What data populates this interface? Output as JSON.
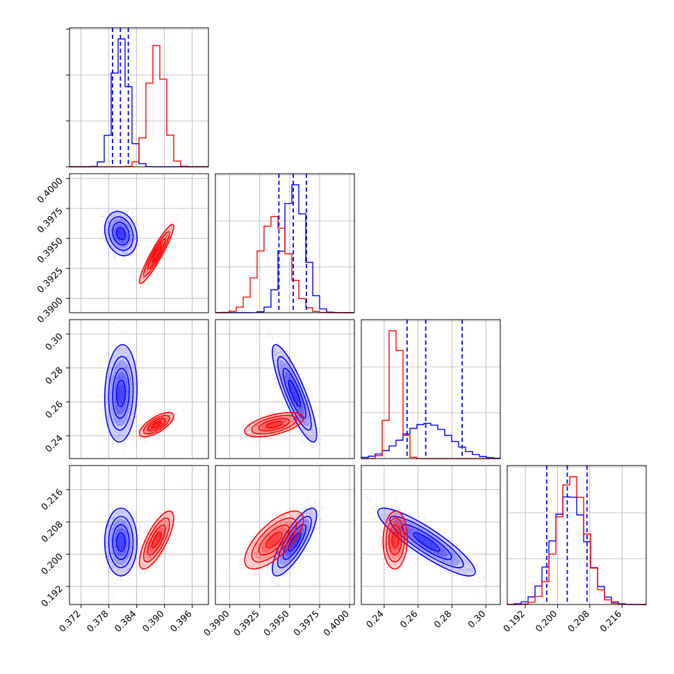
{
  "chart_data": {
    "type": "corner",
    "title": "",
    "grid": true,
    "legend": "none",
    "colors": {
      "series_a": "#0000ff",
      "series_b": "#ff0000",
      "grid": "#b0b0b0",
      "axis": "#000000"
    },
    "parameters": [
      {
        "range": [
          0.3695,
          0.3995
        ],
        "xticks": [
          0.372,
          0.378,
          0.384,
          0.39,
          0.396
        ],
        "xtick_labels": [
          "0.372",
          "0.378",
          "0.384",
          "0.390",
          "0.396"
        ]
      },
      {
        "range": [
          0.3888,
          0.4004
        ],
        "xticks": [
          0.39,
          0.3925,
          0.395,
          0.3975,
          0.4
        ],
        "xtick_labels": [
          "0.3900",
          "0.3925",
          "0.3950",
          "0.3975",
          "0.4000"
        ],
        "yticks": [
          0.39,
          0.3925,
          0.395,
          0.3975,
          0.4
        ],
        "ytick_labels": [
          "0.3900",
          "0.3925",
          "0.3950",
          "0.3975",
          "0.4000"
        ]
      },
      {
        "range": [
          0.2265,
          0.3085
        ],
        "xticks": [
          0.24,
          0.26,
          0.28,
          0.3
        ],
        "xtick_labels": [
          "0.24",
          "0.26",
          "0.28",
          "0.30"
        ],
        "yticks": [
          0.24,
          0.26,
          0.28,
          0.3
        ],
        "ytick_labels": [
          "0.24",
          "0.26",
          "0.28",
          "0.30"
        ]
      },
      {
        "range": [
          0.1875,
          0.222
        ],
        "xticks": [
          0.192,
          0.2,
          0.208,
          0.216
        ],
        "xtick_labels": [
          "0.192",
          "0.200",
          "0.208",
          "0.216"
        ],
        "yticks": [
          0.192,
          0.2,
          0.208,
          0.216
        ],
        "ytick_labels": [
          "0.192",
          "0.200",
          "0.208",
          "0.216"
        ]
      }
    ],
    "series": [
      {
        "color": "#0000ff",
        "mean": [
          0.3806,
          0.3954,
          0.265,
          0.203
        ],
        "sd": [
          0.0017,
          0.0009,
          0.014,
          0.0041
        ],
        "quantiles": [
          [
            0.3788,
            0.3805,
            0.3822
          ],
          [
            0.3941,
            0.3953,
            0.3964
          ],
          [
            0.2535,
            0.2645,
            0.286
          ],
          [
            0.1973,
            0.2024,
            0.2073
          ]
        ],
        "correlations": [
          {
            "pair": [
              0,
              1
            ],
            "rho": -0.2
          },
          {
            "pair": [
              0,
              2
            ],
            "rho": 0.1
          },
          {
            "pair": [
              1,
              2
            ],
            "rho": -0.85
          },
          {
            "pair": [
              0,
              3
            ],
            "rho": 0.0
          },
          {
            "pair": [
              1,
              3
            ],
            "rho": 0.8
          },
          {
            "pair": [
              2,
              3
            ],
            "rho": -0.88
          }
        ]
      },
      {
        "color": "#ff0000",
        "mean": [
          0.3883,
          0.3937,
          0.2465,
          0.2035
        ],
        "sd": [
          0.0018,
          0.0012,
          0.0035,
          0.0035
        ],
        "quantiles": [],
        "correlations": [
          {
            "pair": [
              0,
              1
            ],
            "rho": 0.93
          },
          {
            "pair": [
              0,
              2
            ],
            "rho": 0.7
          },
          {
            "pair": [
              1,
              2
            ],
            "rho": 0.55
          },
          {
            "pair": [
              0,
              3
            ],
            "rho": 0.75
          },
          {
            "pair": [
              1,
              3
            ],
            "rho": 0.7
          },
          {
            "pair": [
              2,
              3
            ],
            "rho": 0.05
          }
        ]
      }
    ]
  }
}
